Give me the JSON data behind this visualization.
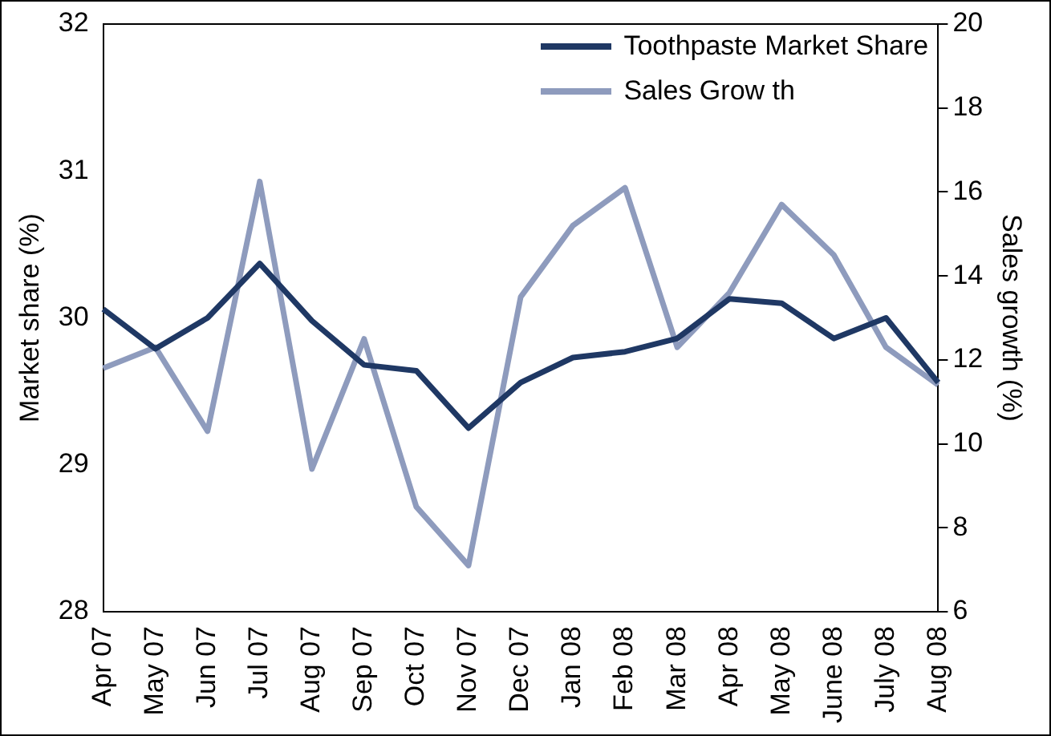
{
  "chart_data": {
    "type": "line",
    "ylabel": "Market share (%)",
    "y2label": "Sales growth (%)",
    "categories": [
      "Apr 07",
      "May 07",
      "Jun 07",
      "Jul 07",
      "Aug 07",
      "Sep 07",
      "Oct 07",
      "Nov 07",
      "Dec 07",
      "Jan 08",
      "Feb 08",
      "Mar 08",
      "Apr 08",
      "May 08",
      "June 08",
      "July 08",
      "Aug 08"
    ],
    "series": [
      {
        "name": "Toothpaste Market Share",
        "color": "#1f3864",
        "values": [
          30.06,
          29.79,
          30.0,
          30.37,
          29.98,
          29.68,
          29.64,
          29.25,
          29.56,
          29.73,
          29.77,
          29.86,
          30.13,
          30.1,
          29.86,
          30.0,
          29.56
        ]
      },
      {
        "name": "Sales Grow th",
        "color": "#8e9bbd",
        "axis": "y2",
        "values": [
          11.8,
          12.3,
          10.3,
          16.25,
          9.4,
          12.5,
          8.5,
          7.1,
          13.5,
          15.2,
          16.1,
          12.3,
          13.6,
          15.7,
          14.5,
          12.3,
          11.4
        ]
      }
    ],
    "ylim": [
      28,
      32
    ],
    "yticks": [
      28,
      29,
      30,
      31,
      32
    ],
    "y2lim": [
      6,
      20
    ],
    "y2ticks": [
      6,
      8,
      10,
      12,
      14,
      16,
      18,
      20
    ],
    "grid": false,
    "legend": "top right",
    "marker": "none",
    "line_style": "solid"
  }
}
